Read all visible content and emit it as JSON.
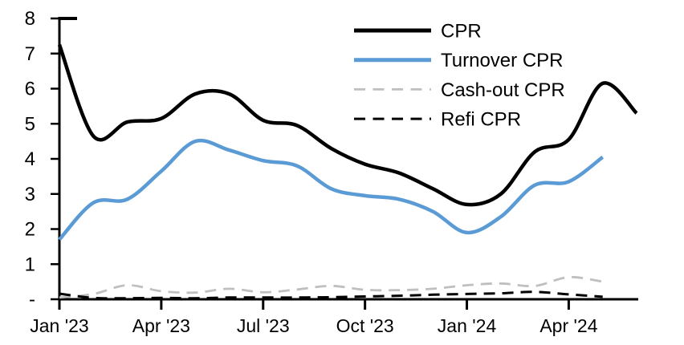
{
  "chart_data": {
    "type": "line",
    "categories": [
      "Jan '23",
      "Feb '23",
      "Mar '23",
      "Apr '23",
      "May '23",
      "Jun '23",
      "Jul '23",
      "Aug '23",
      "Sep '23",
      "Oct '23",
      "Nov '23",
      "Dec '23",
      "Jan '24",
      "Feb '24",
      "Mar '24",
      "Apr '24",
      "May '24",
      "Jun '24"
    ],
    "ylim": [
      0,
      8
    ],
    "grid": false,
    "legend_position": "top-center-inside",
    "y_ticks": {
      "labels": [
        "8",
        "7",
        "6",
        "5",
        "4",
        "3",
        "2",
        "1",
        "-"
      ],
      "values": [
        8,
        7,
        6,
        5,
        4,
        3,
        2,
        1,
        0
      ]
    },
    "x_ticks": {
      "labels": [
        "Jan '23",
        "Apr '23",
        "Jul '23",
        "Oct '23",
        "Jan '24",
        "Apr '24"
      ],
      "month_indexes": [
        0,
        3,
        6,
        9,
        12,
        15
      ]
    },
    "series": [
      {
        "name": "CPR",
        "color": "#000000",
        "style": "solid",
        "width": 4.5,
        "values": [
          7.25,
          4.65,
          5.05,
          5.15,
          5.85,
          5.85,
          5.1,
          4.95,
          4.3,
          3.85,
          3.6,
          3.15,
          2.7,
          3.0,
          4.2,
          4.55,
          6.15,
          5.3
        ]
      },
      {
        "name": "Turnover CPR",
        "color": "#5B9BD5",
        "style": "solid",
        "width": 4.5,
        "values": [
          1.7,
          2.75,
          2.85,
          3.65,
          4.5,
          4.25,
          3.95,
          3.8,
          3.15,
          2.95,
          2.85,
          2.5,
          1.9,
          2.35,
          3.25,
          3.35,
          4.05,
          null
        ]
      },
      {
        "name": "Cash-out CPR",
        "color": "#BFBFBF",
        "style": "dashed",
        "width": 2.8,
        "values": [
          0.05,
          0.15,
          0.4,
          0.23,
          0.19,
          0.3,
          0.2,
          0.28,
          0.38,
          0.27,
          0.26,
          0.3,
          0.4,
          0.45,
          0.38,
          0.63,
          0.5,
          null
        ]
      },
      {
        "name": "Refi CPR",
        "color": "#000000",
        "style": "dashed",
        "width": 3,
        "values": [
          0.16,
          0.04,
          0.03,
          0.04,
          0.03,
          0.05,
          0.05,
          0.05,
          0.06,
          0.08,
          0.1,
          0.13,
          0.15,
          0.17,
          0.21,
          0.14,
          0.07,
          null
        ]
      }
    ]
  }
}
